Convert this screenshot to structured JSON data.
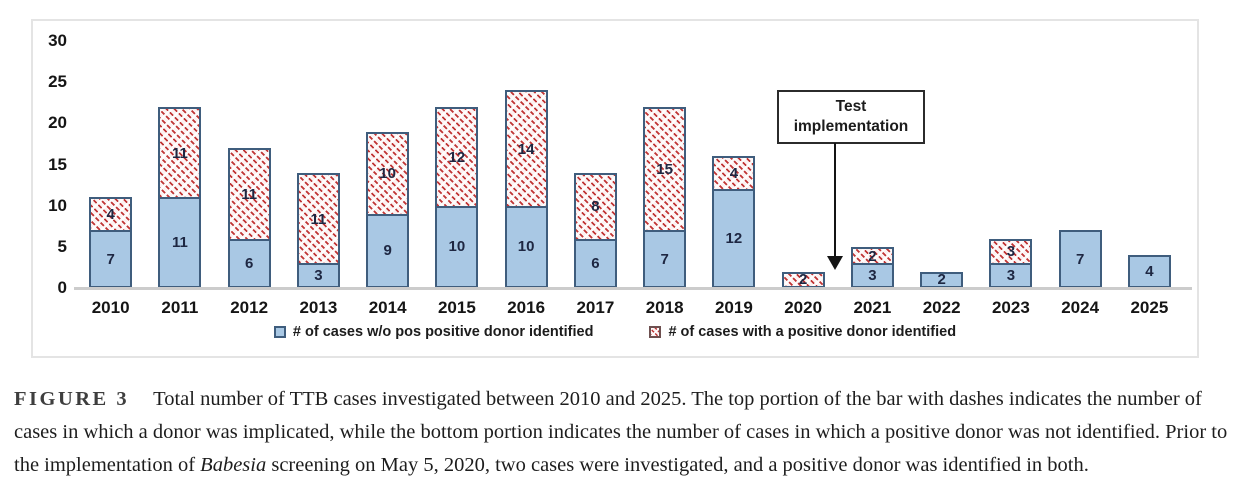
{
  "figure": {
    "annotation": {
      "line1": "Test",
      "line2": "implementation"
    },
    "legend": [
      {
        "label": "# of cases w/o pos positive donor identified",
        "swatch": "blue-solid",
        "color": "#a9c8e4"
      },
      {
        "label": "# of cases with a positive donor identified",
        "swatch": "red-hatch",
        "color": "#c03535"
      }
    ]
  },
  "chart_data": {
    "type": "bar",
    "stacked": true,
    "title": "",
    "xlabel": "",
    "ylabel": "",
    "categories": [
      "2010",
      "2011",
      "2012",
      "2013",
      "2014",
      "2015",
      "2016",
      "2017",
      "2018",
      "2019",
      "2020",
      "2021",
      "2022",
      "2023",
      "2024",
      "2025"
    ],
    "series": [
      {
        "name": "# of cases w/o pos positive donor identified",
        "style": "blue-solid",
        "color": "#a9c8e4",
        "values": [
          7,
          11,
          6,
          3,
          9,
          10,
          10,
          6,
          7,
          12,
          0,
          3,
          2,
          3,
          7,
          4
        ]
      },
      {
        "name": "# of cases with a positive donor identified",
        "style": "red-hatch",
        "color": "#c03535",
        "values": [
          4,
          11,
          11,
          11,
          10,
          12,
          14,
          8,
          15,
          4,
          2,
          2,
          0,
          3,
          0,
          0
        ]
      }
    ],
    "totals": [
      11,
      22,
      17,
      14,
      19,
      22,
      24,
      14,
      22,
      16,
      2,
      5,
      2,
      6,
      7,
      4
    ],
    "yticks": [
      0,
      5,
      10,
      15,
      20,
      25,
      30
    ],
    "ylim": [
      0,
      30
    ],
    "grid": false,
    "legend_position": "bottom",
    "annotation": {
      "text": "Test implementation",
      "arrow_points_between": [
        "2020",
        "2021"
      ]
    }
  },
  "caption": {
    "label": "FIGURE 3",
    "text_before_italic": "Total number of TTB cases investigated between 2010 and 2025. The top portion of the bar with dashes indicates the number of cases in which a donor was implicated, while the bottom portion indicates the number of cases in which a positive donor was not identified. Prior to the implementation of ",
    "italic": "Babesia",
    "text_after_italic": " screening on May 5, 2020, two cases were investigated, and a positive donor was identified in both."
  },
  "colors": {
    "bar_border": "#3f5d7d",
    "blue_fill": "#a9c8e4",
    "hatch_red": "#c03535",
    "number_label": "#1e2742",
    "axis_text": "#151515",
    "baseline": "#cccccc",
    "frame_border": "#e4e4e4"
  }
}
